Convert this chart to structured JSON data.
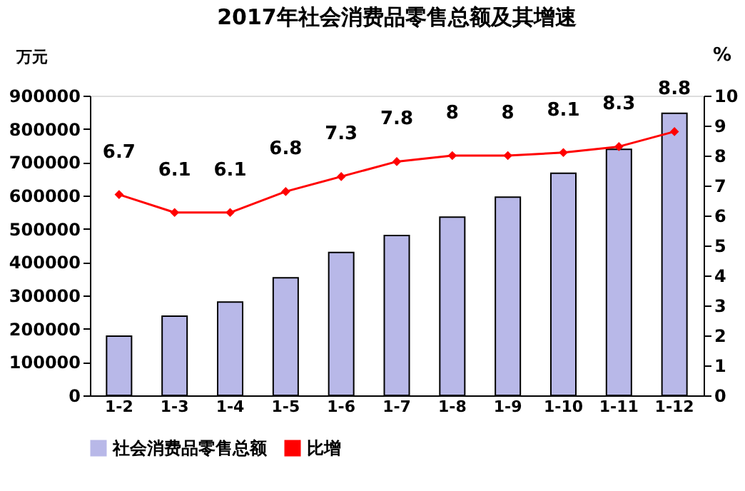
{
  "chart_data": {
    "type": "bar",
    "title": "2017年社会消费品零售总额及其增速",
    "categories": [
      "1-2",
      "1-3",
      "1-4",
      "1-5",
      "1-6",
      "1-7",
      "1-8",
      "1-9",
      "1-10",
      "1-11",
      "1-12"
    ],
    "ylabel": "万元",
    "y2label": "%",
    "ylim": [
      0,
      900000
    ],
    "yticks": [
      0,
      100000,
      200000,
      300000,
      400000,
      500000,
      600000,
      700000,
      800000,
      900000
    ],
    "y2lim": [
      0,
      10
    ],
    "y2ticks": [
      0,
      1,
      2,
      3,
      4,
      5,
      6,
      7,
      8,
      9,
      10
    ],
    "series": [
      {
        "name": "社会消费品零售总额",
        "color": "#b8b8e8",
        "values": [
          178000,
          238000,
          280000,
          353000,
          429000,
          480000,
          535000,
          595000,
          667000,
          739000,
          847000
        ]
      },
      {
        "name": "比增",
        "type": "line",
        "axis": "y2",
        "color": "#ff0000",
        "marker": "diamond",
        "line_style": "solid",
        "values": [
          6.7,
          6.1,
          6.1,
          6.8,
          7.3,
          7.8,
          8,
          8,
          8.1,
          8.3,
          8.8
        ],
        "value_labels": [
          "6.7",
          "6.1",
          "6.1",
          "6.8",
          "7.3",
          "7.8",
          "8",
          "8",
          "8.1",
          "8.3",
          "8.8"
        ]
      }
    ],
    "legend": "bottom",
    "grid": false
  }
}
